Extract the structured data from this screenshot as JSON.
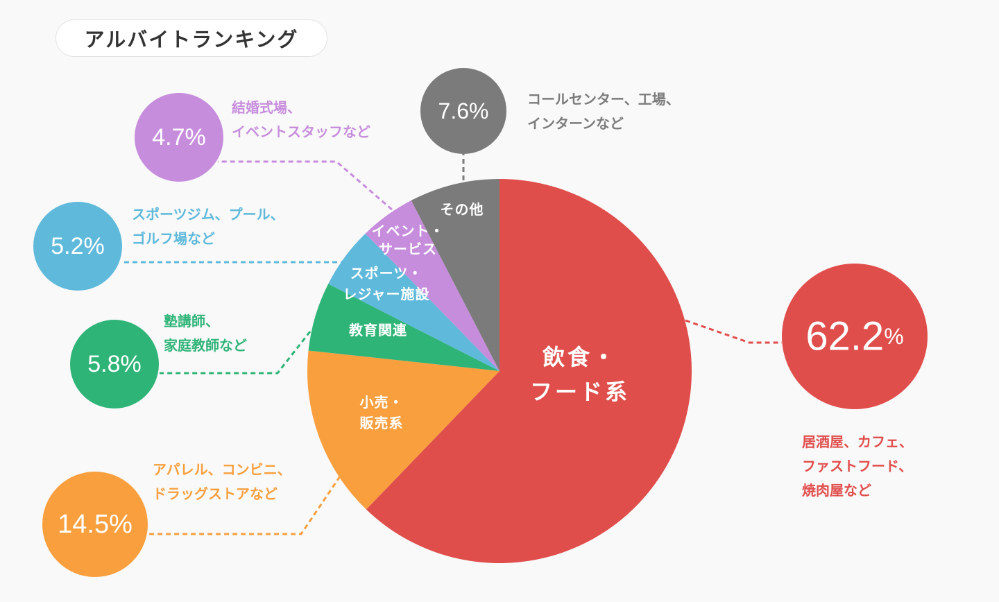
{
  "title": "アルバイトランキング",
  "colors": {
    "food": "#e04e4c",
    "retail": "#f99f3e",
    "education": "#2fb478",
    "sports": "#5fb9db",
    "event": "#c78ddd",
    "other": "#7b7b7b",
    "background": "#f9f9f9"
  },
  "chart_data": {
    "type": "pie",
    "title": "アルバイトランキング",
    "unit": "%",
    "slices": [
      {
        "key": "food",
        "label_lines": [
          "飲食・",
          "フード系"
        ],
        "value": 62.2,
        "value_label": "62.2",
        "pct_sign": "%",
        "color": "#e04e4c",
        "examples": [
          "居酒屋、カフェ、",
          "ファストフード、",
          "焼肉屋など"
        ]
      },
      {
        "key": "retail",
        "label_lines": [
          "小売・",
          "販売系"
        ],
        "value": 14.5,
        "value_label": "14.5%",
        "color": "#f99f3e",
        "examples": [
          "アパレル、コンビニ、",
          "ドラッグストアなど"
        ]
      },
      {
        "key": "education",
        "label_lines": [
          "教育関連"
        ],
        "value": 5.8,
        "value_label": "5.8%",
        "color": "#2fb478",
        "examples": [
          "塾講師、",
          "家庭教師など"
        ]
      },
      {
        "key": "sports",
        "label_lines": [
          "スポーツ・",
          "レジャー施設"
        ],
        "value": 5.2,
        "value_label": "5.2%",
        "color": "#5fb9db",
        "examples": [
          "スポーツジム、プール、",
          "ゴルフ場など"
        ]
      },
      {
        "key": "event",
        "label_lines": [
          "イベント・",
          "サービス"
        ],
        "value": 4.7,
        "value_label": "4.7%",
        "color": "#c78ddd",
        "examples": [
          "結婚式場、",
          "イベントスタッフなど"
        ]
      },
      {
        "key": "other",
        "label_lines": [
          "その他"
        ],
        "value": 7.6,
        "value_label": "7.6%",
        "color": "#7b7b7b",
        "examples": [
          "コールセンター、工場、",
          "インターンなど"
        ]
      }
    ]
  }
}
